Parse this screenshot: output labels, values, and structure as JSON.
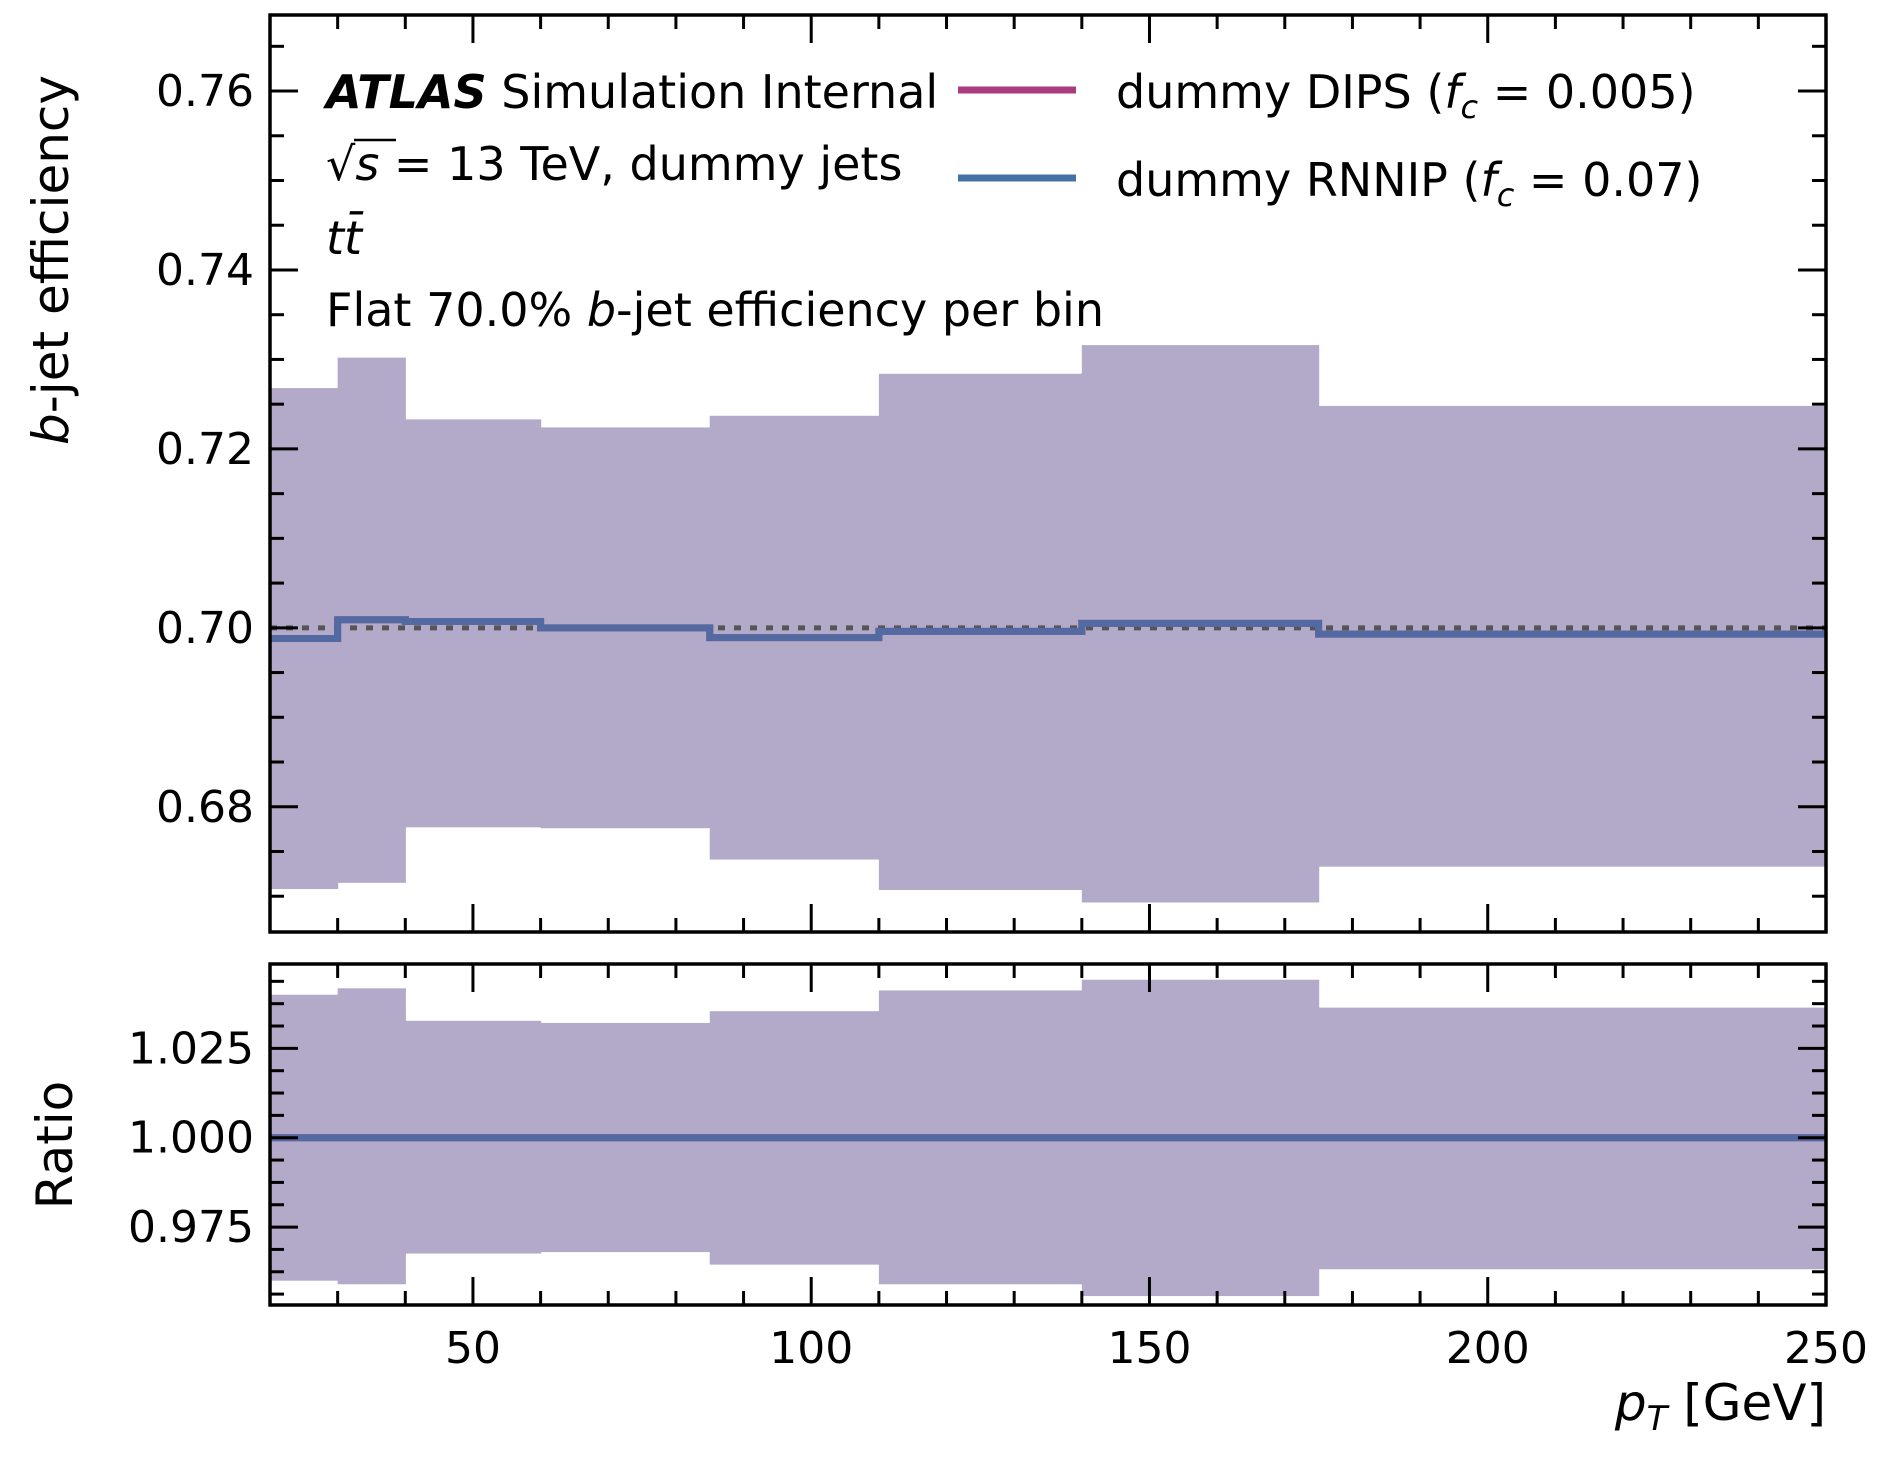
{
  "chart_data": {
    "type": "step",
    "x_label_main": "p",
    "x_label_sub": "T",
    "x_label_unit": " [GeV]",
    "xlim": [
      20,
      250
    ],
    "x_ticks": [
      "50",
      "100",
      "150",
      "200",
      "250"
    ],
    "x_tick_values": [
      50,
      100,
      150,
      200,
      250
    ],
    "bin_edges": [
      20,
      30,
      40,
      60,
      85,
      110,
      140,
      175,
      250
    ],
    "annotations": {
      "atlas": "ATLAS",
      "simulation": " Simulation Internal",
      "line2_pre": "√",
      "line2_s": "s",
      "line2_rest": " = 13 TeV, dummy jets",
      "line3_t": "t",
      "line3_tbar": "t̄",
      "line4_pre": "Flat 70.0% ",
      "line4_b": "b",
      "line4_post": "-jet efficiency per bin"
    },
    "series": [
      {
        "name_pre": "dummy DIPS (",
        "name_f": "f",
        "name_c": "c",
        "name_post": " = 0.005)",
        "color": "#a93b7e",
        "values": [
          0.6988,
          0.7009,
          0.7007,
          0.7,
          0.6989,
          0.6996,
          0.7005,
          0.6993
        ],
        "ratio": [
          1.0,
          1.0,
          1.0,
          1.0,
          1.0,
          1.0,
          1.0,
          1.0
        ]
      },
      {
        "name_pre": "dummy RNNIP (",
        "name_f": "f",
        "name_c": "c",
        "name_post": " = 0.07)",
        "color": "#4472a8",
        "values": [
          0.6988,
          0.7009,
          0.7007,
          0.7,
          0.6989,
          0.6996,
          0.7005,
          0.6993
        ],
        "ratio": [
          1.0,
          1.0,
          1.0,
          1.0,
          1.0,
          1.0,
          1.0,
          1.0
        ]
      }
    ],
    "uncertainty_band": {
      "color": "#b3a9c8",
      "upper": [
        0.7268,
        0.7302,
        0.7233,
        0.7224,
        0.7237,
        0.7284,
        0.7316,
        0.7248
      ],
      "lower": [
        0.6708,
        0.6715,
        0.6777,
        0.6776,
        0.6741,
        0.6707,
        0.6693,
        0.6733
      ]
    },
    "ratio_band": {
      "upper": [
        1.04,
        1.0418,
        1.0327,
        1.0321,
        1.0354,
        1.0412,
        1.0442,
        1.0364
      ],
      "lower": [
        0.96,
        0.959,
        0.9676,
        0.968,
        0.9645,
        0.959,
        0.9557,
        0.9632
      ]
    },
    "reference_line": 0.7,
    "main_panel": {
      "y_label_b": "b",
      "y_label_rest": "-jet efficiency",
      "ylim": [
        0.666,
        0.7685
      ],
      "y_ticks": [
        "0.68",
        "0.70",
        "0.72",
        "0.74",
        "0.76"
      ],
      "y_tick_values": [
        0.68,
        0.7,
        0.72,
        0.74,
        0.76
      ]
    },
    "ratio_panel": {
      "y_label": "Ratio",
      "ylim": [
        0.9532,
        1.0486
      ],
      "y_ticks": [
        "0.975",
        "1.000",
        "1.025"
      ],
      "y_tick_values": [
        0.975,
        1.0,
        1.025
      ]
    }
  }
}
